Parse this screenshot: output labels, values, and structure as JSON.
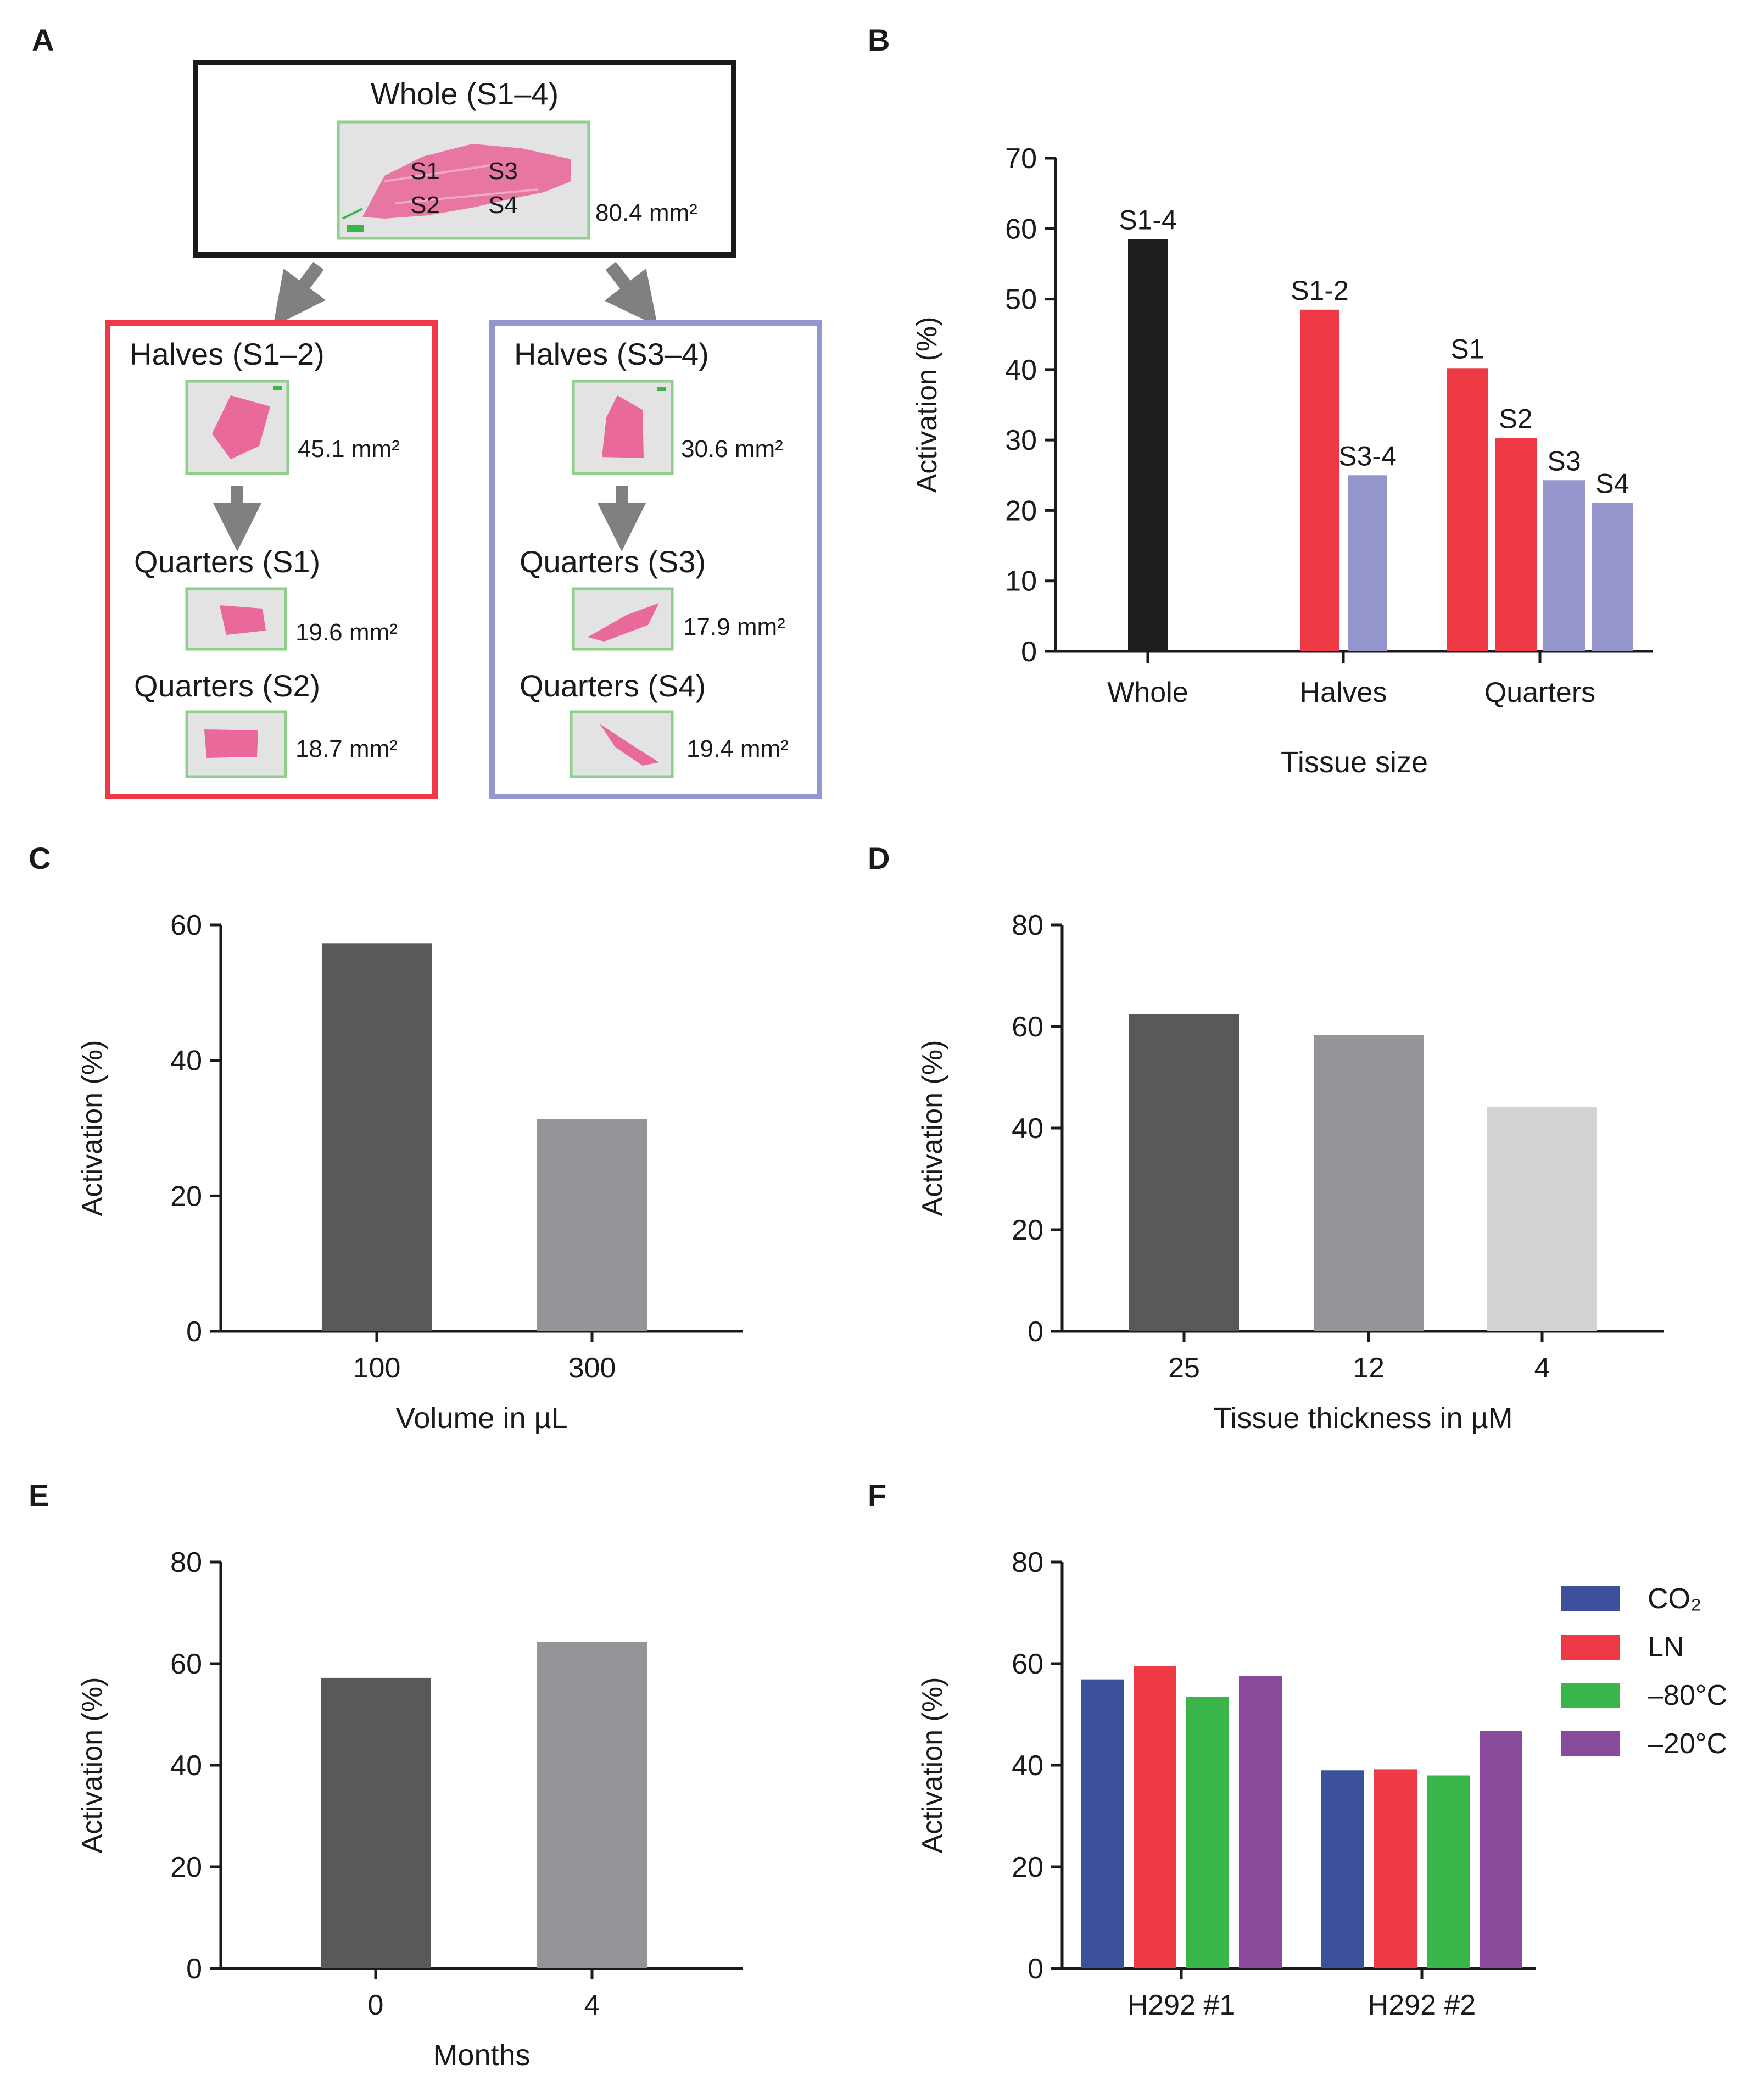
{
  "colors": {
    "black": "#1e1e1e",
    "dark_gray": "#58595b",
    "mid_gray": "#939598",
    "light_gray": "#d1d2d4",
    "red": "#ed3a45",
    "lavender": "#9596cb",
    "co2_blue": "#3c509c",
    "ln_red": "#ed3a45",
    "m80_green": "#3ab54a",
    "m20_purple": "#8a4a9b",
    "arrow_gray": "#808080",
    "tissue_pink": "#e8699a",
    "thumb_bg": "#dedede",
    "thumb_border": "#8ed08a"
  },
  "panel_a": {
    "label": "A",
    "whole": {
      "title": "Whole (S1–4)",
      "area": "80.4 mm²",
      "section_labels": [
        "S1",
        "S3",
        "S2",
        "S4"
      ]
    },
    "halves_left": {
      "title": "Halves (S1–2)",
      "area": "45.1 mm²",
      "q1_title": "Quarters (S1)",
      "q1_area": "19.6 mm²",
      "q2_title": "Quarters (S2)",
      "q2_area": "18.7 mm²"
    },
    "halves_right": {
      "title": "Halves (S3–4)",
      "area": "30.6 mm²",
      "q1_title": "Quarters (S3)",
      "q1_area": "17.9 mm²",
      "q2_title": "Quarters (S4)",
      "q2_area": "19.4 mm²"
    }
  },
  "chart_data": [
    {
      "panel": "B",
      "type": "bar",
      "ylabel": "Activation (%)",
      "xlabel": "Tissue size",
      "ylim": [
        0,
        70
      ],
      "yticks": [
        0,
        10,
        20,
        30,
        40,
        50,
        60,
        70
      ],
      "groups": [
        "Whole",
        "Halves",
        "Quarters"
      ],
      "bars": [
        {
          "group": "Whole",
          "label": "S1-4",
          "value": 58.5,
          "color": "black"
        },
        {
          "group": "Halves",
          "label": "S1-2",
          "value": 48.5,
          "color": "red"
        },
        {
          "group": "Halves",
          "label": "S3-4",
          "value": 25,
          "color": "lavender"
        },
        {
          "group": "Quarters",
          "label": "S1",
          "value": 40.2,
          "color": "red"
        },
        {
          "group": "Quarters",
          "label": "S2",
          "value": 30.3,
          "color": "red"
        },
        {
          "group": "Quarters",
          "label": "S3",
          "value": 24.3,
          "color": "lavender"
        },
        {
          "group": "Quarters",
          "label": "S4",
          "value": 21.1,
          "color": "lavender"
        }
      ]
    },
    {
      "panel": "C",
      "type": "bar",
      "ylabel": "Activation (%)",
      "xlabel": "Volume in µL",
      "ylim": [
        0,
        60
      ],
      "yticks": [
        0,
        20,
        40,
        60
      ],
      "categories": [
        "100",
        "300"
      ],
      "values": [
        57.3,
        31.3
      ],
      "bar_colors": [
        "dark_gray",
        "mid_gray"
      ]
    },
    {
      "panel": "D",
      "type": "bar",
      "ylabel": "Activation (%)",
      "xlabel": "Tissue thickness in µM",
      "ylim": [
        0,
        80
      ],
      "yticks": [
        0,
        20,
        40,
        60,
        80
      ],
      "categories": [
        "25",
        "12",
        "4"
      ],
      "values": [
        62.4,
        58.3,
        44.2
      ],
      "bar_colors": [
        "dark_gray",
        "mid_gray",
        "light_gray"
      ]
    },
    {
      "panel": "E",
      "type": "bar",
      "ylabel": "Activation (%)",
      "xlabel": "Months",
      "ylim": [
        0,
        80
      ],
      "yticks": [
        0,
        20,
        40,
        60,
        80
      ],
      "categories": [
        "0",
        "4"
      ],
      "values": [
        57.2,
        64.3
      ],
      "bar_colors": [
        "dark_gray",
        "mid_gray"
      ]
    },
    {
      "panel": "F",
      "type": "bar",
      "ylabel": "Activation (%)",
      "xlabel": "",
      "ylim": [
        0,
        80
      ],
      "yticks": [
        0,
        20,
        40,
        60,
        80
      ],
      "categories": [
        "H292 #1",
        "H292 #2"
      ],
      "legend_position": "top-right",
      "series": [
        {
          "name": "CO₂",
          "values": [
            56.9,
            39.0
          ],
          "color": "co2_blue"
        },
        {
          "name": "LN",
          "values": [
            59.5,
            39.2
          ],
          "color": "ln_red"
        },
        {
          "name": "–80°C",
          "values": [
            53.5,
            38.0
          ],
          "color": "m80_green"
        },
        {
          "name": "–20°C",
          "values": [
            57.6,
            46.7
          ],
          "color": "m20_purple"
        }
      ]
    }
  ]
}
